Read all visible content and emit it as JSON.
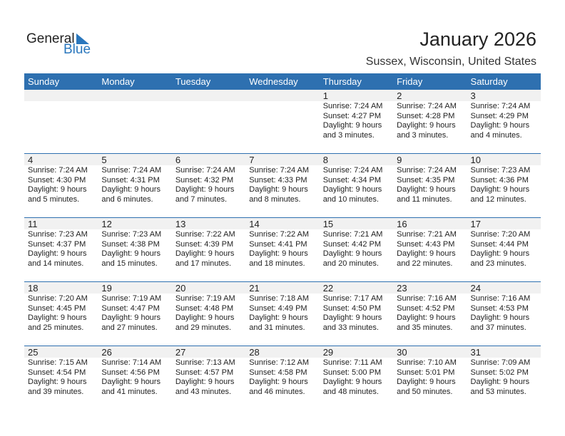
{
  "logo": {
    "general": "General",
    "blue": "Blue"
  },
  "title": "January 2026",
  "location": "Sussex, Wisconsin, United States",
  "weekdays": [
    "Sunday",
    "Monday",
    "Tuesday",
    "Wednesday",
    "Thursday",
    "Friday",
    "Saturday"
  ],
  "days": [
    {
      "d": "1",
      "rise": "7:24 AM",
      "set": "4:27 PM",
      "h": "9",
      "m": "3"
    },
    {
      "d": "2",
      "rise": "7:24 AM",
      "set": "4:28 PM",
      "h": "9",
      "m": "3"
    },
    {
      "d": "3",
      "rise": "7:24 AM",
      "set": "4:29 PM",
      "h": "9",
      "m": "4"
    },
    {
      "d": "4",
      "rise": "7:24 AM",
      "set": "4:30 PM",
      "h": "9",
      "m": "5"
    },
    {
      "d": "5",
      "rise": "7:24 AM",
      "set": "4:31 PM",
      "h": "9",
      "m": "6"
    },
    {
      "d": "6",
      "rise": "7:24 AM",
      "set": "4:32 PM",
      "h": "9",
      "m": "7"
    },
    {
      "d": "7",
      "rise": "7:24 AM",
      "set": "4:33 PM",
      "h": "9",
      "m": "8"
    },
    {
      "d": "8",
      "rise": "7:24 AM",
      "set": "4:34 PM",
      "h": "9",
      "m": "10"
    },
    {
      "d": "9",
      "rise": "7:24 AM",
      "set": "4:35 PM",
      "h": "9",
      "m": "11"
    },
    {
      "d": "10",
      "rise": "7:23 AM",
      "set": "4:36 PM",
      "h": "9",
      "m": "12"
    },
    {
      "d": "11",
      "rise": "7:23 AM",
      "set": "4:37 PM",
      "h": "9",
      "m": "14"
    },
    {
      "d": "12",
      "rise": "7:23 AM",
      "set": "4:38 PM",
      "h": "9",
      "m": "15"
    },
    {
      "d": "13",
      "rise": "7:22 AM",
      "set": "4:39 PM",
      "h": "9",
      "m": "17"
    },
    {
      "d": "14",
      "rise": "7:22 AM",
      "set": "4:41 PM",
      "h": "9",
      "m": "18"
    },
    {
      "d": "15",
      "rise": "7:21 AM",
      "set": "4:42 PM",
      "h": "9",
      "m": "20"
    },
    {
      "d": "16",
      "rise": "7:21 AM",
      "set": "4:43 PM",
      "h": "9",
      "m": "22"
    },
    {
      "d": "17",
      "rise": "7:20 AM",
      "set": "4:44 PM",
      "h": "9",
      "m": "23"
    },
    {
      "d": "18",
      "rise": "7:20 AM",
      "set": "4:45 PM",
      "h": "9",
      "m": "25"
    },
    {
      "d": "19",
      "rise": "7:19 AM",
      "set": "4:47 PM",
      "h": "9",
      "m": "27"
    },
    {
      "d": "20",
      "rise": "7:19 AM",
      "set": "4:48 PM",
      "h": "9",
      "m": "29"
    },
    {
      "d": "21",
      "rise": "7:18 AM",
      "set": "4:49 PM",
      "h": "9",
      "m": "31"
    },
    {
      "d": "22",
      "rise": "7:17 AM",
      "set": "4:50 PM",
      "h": "9",
      "m": "33"
    },
    {
      "d": "23",
      "rise": "7:16 AM",
      "set": "4:52 PM",
      "h": "9",
      "m": "35"
    },
    {
      "d": "24",
      "rise": "7:16 AM",
      "set": "4:53 PM",
      "h": "9",
      "m": "37"
    },
    {
      "d": "25",
      "rise": "7:15 AM",
      "set": "4:54 PM",
      "h": "9",
      "m": "39"
    },
    {
      "d": "26",
      "rise": "7:14 AM",
      "set": "4:56 PM",
      "h": "9",
      "m": "41"
    },
    {
      "d": "27",
      "rise": "7:13 AM",
      "set": "4:57 PM",
      "h": "9",
      "m": "43"
    },
    {
      "d": "28",
      "rise": "7:12 AM",
      "set": "4:58 PM",
      "h": "9",
      "m": "46"
    },
    {
      "d": "29",
      "rise": "7:11 AM",
      "set": "5:00 PM",
      "h": "9",
      "m": "48"
    },
    {
      "d": "30",
      "rise": "7:10 AM",
      "set": "5:01 PM",
      "h": "9",
      "m": "50"
    },
    {
      "d": "31",
      "rise": "7:09 AM",
      "set": "5:02 PM",
      "h": "9",
      "m": "53"
    }
  ],
  "labels": {
    "sunrise": "Sunrise:",
    "sunset": "Sunset:",
    "daylight": "Daylight:",
    "hours": "hours",
    "and": "and",
    "minutes": "minutes."
  },
  "colors": {
    "header": "#2e70b0",
    "brand": "#2a77bd",
    "dayband": "#f1f1f1"
  }
}
